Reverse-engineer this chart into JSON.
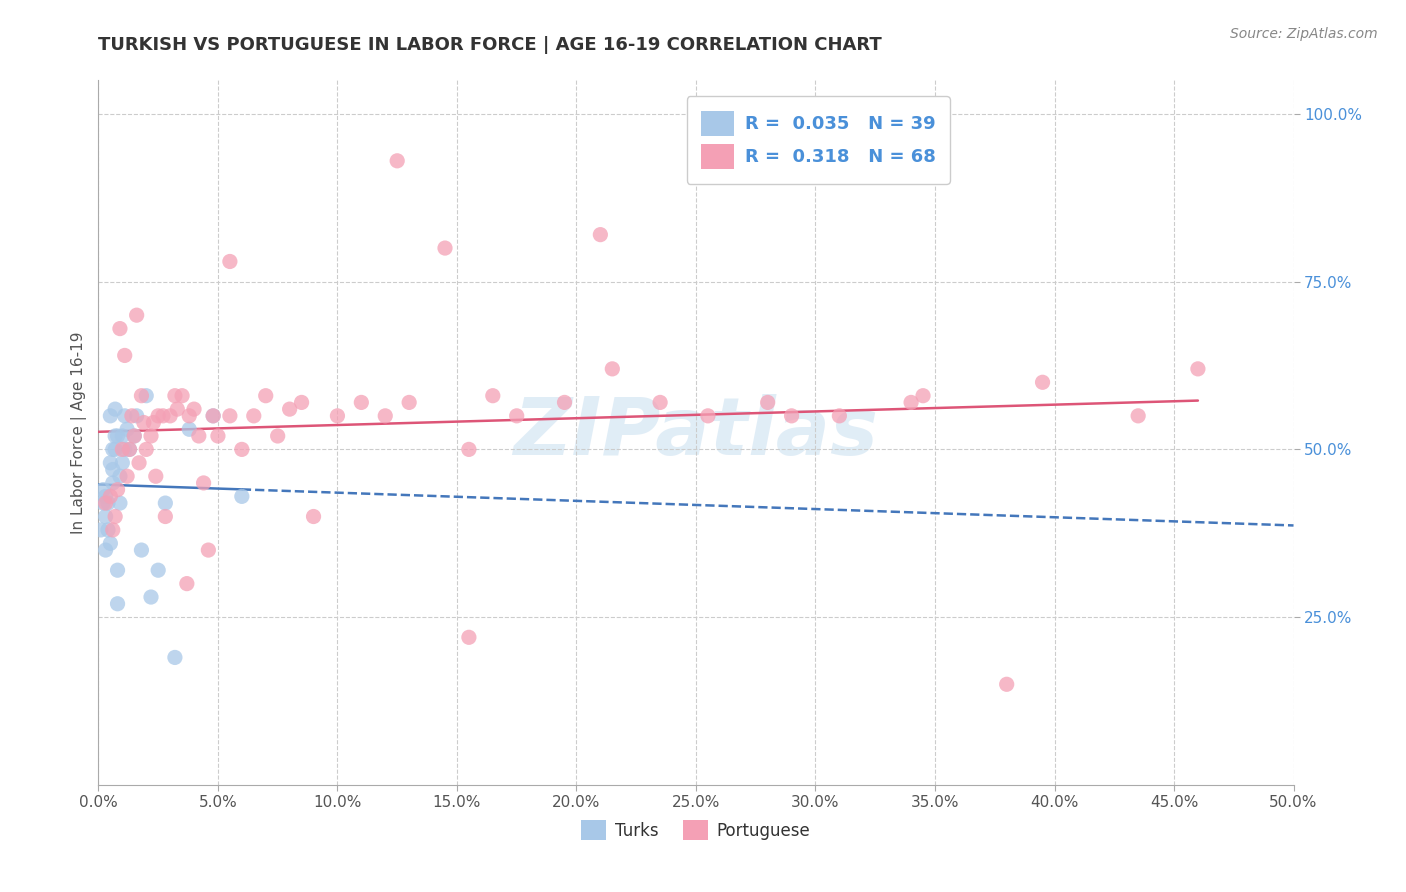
{
  "title": "TURKISH VS PORTUGUESE IN LABOR FORCE | AGE 16-19 CORRELATION CHART",
  "source": "Source: ZipAtlas.com",
  "ylabel": "In Labor Force | Age 16-19",
  "xlim": [
    0.0,
    0.5
  ],
  "ylim": [
    0.0,
    1.05
  ],
  "xticks": [
    0.0,
    0.05,
    0.1,
    0.15,
    0.2,
    0.25,
    0.3,
    0.35,
    0.4,
    0.45,
    0.5
  ],
  "yticks": [
    0.25,
    0.5,
    0.75,
    1.0
  ],
  "turks_R": 0.035,
  "turks_N": 39,
  "portuguese_R": 0.318,
  "portuguese_N": 68,
  "turks_color": "#a8c8e8",
  "portuguese_color": "#f4a0b5",
  "trend_turks_color": "#4477bb",
  "trend_portuguese_color": "#dd5577",
  "legend_text_color": "#4a90d9",
  "title_color": "#333333",
  "grid_color": "#cccccc",
  "watermark": "ZIPatlas",
  "turks_x": [
    0.001,
    0.002,
    0.002,
    0.003,
    0.003,
    0.003,
    0.004,
    0.004,
    0.005,
    0.005,
    0.005,
    0.006,
    0.006,
    0.006,
    0.007,
    0.007,
    0.007,
    0.008,
    0.008,
    0.008,
    0.009,
    0.009,
    0.01,
    0.01,
    0.011,
    0.011,
    0.012,
    0.013,
    0.015,
    0.016,
    0.018,
    0.02,
    0.022,
    0.025,
    0.028,
    0.032,
    0.038,
    0.048,
    0.06
  ],
  "turks_y": [
    0.38,
    0.42,
    0.44,
    0.4,
    0.35,
    0.43,
    0.42,
    0.38,
    0.55,
    0.48,
    0.36,
    0.5,
    0.45,
    0.47,
    0.5,
    0.52,
    0.56,
    0.52,
    0.27,
    0.32,
    0.42,
    0.46,
    0.48,
    0.52,
    0.55,
    0.5,
    0.53,
    0.5,
    0.52,
    0.55,
    0.35,
    0.58,
    0.28,
    0.32,
    0.42,
    0.19,
    0.53,
    0.55,
    0.43
  ],
  "portuguese_x": [
    0.003,
    0.005,
    0.006,
    0.007,
    0.008,
    0.009,
    0.01,
    0.011,
    0.012,
    0.013,
    0.014,
    0.015,
    0.016,
    0.017,
    0.018,
    0.019,
    0.02,
    0.022,
    0.023,
    0.024,
    0.025,
    0.027,
    0.028,
    0.03,
    0.032,
    0.033,
    0.035,
    0.037,
    0.038,
    0.04,
    0.042,
    0.044,
    0.046,
    0.048,
    0.05,
    0.055,
    0.06,
    0.065,
    0.07,
    0.075,
    0.08,
    0.085,
    0.09,
    0.1,
    0.11,
    0.12,
    0.13,
    0.145,
    0.155,
    0.165,
    0.175,
    0.195,
    0.215,
    0.235,
    0.255,
    0.28,
    0.31,
    0.345,
    0.38,
    0.21,
    0.29,
    0.34,
    0.395,
    0.435,
    0.46,
    0.155,
    0.055,
    0.125
  ],
  "portuguese_y": [
    0.42,
    0.43,
    0.38,
    0.4,
    0.44,
    0.68,
    0.5,
    0.64,
    0.46,
    0.5,
    0.55,
    0.52,
    0.7,
    0.48,
    0.58,
    0.54,
    0.5,
    0.52,
    0.54,
    0.46,
    0.55,
    0.55,
    0.4,
    0.55,
    0.58,
    0.56,
    0.58,
    0.3,
    0.55,
    0.56,
    0.52,
    0.45,
    0.35,
    0.55,
    0.52,
    0.55,
    0.5,
    0.55,
    0.58,
    0.52,
    0.56,
    0.57,
    0.4,
    0.55,
    0.57,
    0.55,
    0.57,
    0.8,
    0.5,
    0.58,
    0.55,
    0.57,
    0.62,
    0.57,
    0.55,
    0.57,
    0.55,
    0.58,
    0.15,
    0.82,
    0.55,
    0.57,
    0.6,
    0.55,
    0.62,
    0.22,
    0.78,
    0.93
  ]
}
